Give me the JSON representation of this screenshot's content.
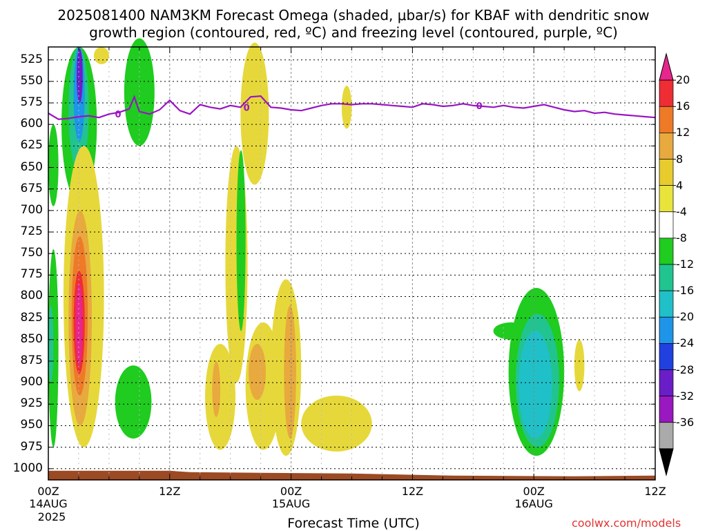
{
  "chart_data": {
    "type": "heatmap",
    "title_line1": "2025081400 NAM3KM Forecast Omega (shaded, μbar/s) for KBAF with dendritic snow",
    "title_line2": "growth region (contoured, red, ºC) and freezing level (contoured, purple, ºC)",
    "xlabel": "Forecast Time (UTC)",
    "ylabel": "",
    "y_ticks": [
      "525",
      "550",
      "575",
      "600",
      "625",
      "650",
      "675",
      "700",
      "725",
      "750",
      "775",
      "800",
      "825",
      "850",
      "875",
      "900",
      "925",
      "950",
      "975",
      "1000"
    ],
    "x_ticks": [
      {
        "label": "00Z",
        "sub": "14AUG"
      },
      {
        "label": "12Z",
        "sub": ""
      },
      {
        "label": "00Z",
        "sub": "15AUG"
      },
      {
        "label": "12Z",
        "sub": ""
      },
      {
        "label": "00Z",
        "sub": "16AUG"
      },
      {
        "label": "12Z",
        "sub": ""
      }
    ],
    "year_label": "2025",
    "xlim_hours": [
      0,
      60
    ],
    "ylim_hPa": [
      1013,
      510
    ],
    "grid": true,
    "colorbar": {
      "labels": [
        "20",
        "16",
        "12",
        "8",
        "4",
        "-4",
        "-8",
        "-12",
        "-16",
        "-20",
        "-24",
        "-28",
        "-32",
        "-36"
      ],
      "colors": [
        "#e8258c",
        "#ef2d35",
        "#ee7a28",
        "#e8a93e",
        "#e8cc2e",
        "#e9e43c",
        "#ffffff",
        "#1fcc1f",
        "#21c48f",
        "#20c0c8",
        "#1e95e8",
        "#2040e0",
        "#6a1ec8",
        "#9a18c0",
        "#aaaaaa",
        "#000000"
      ]
    },
    "freezing_level": {
      "label": "0",
      "hours": [
        0,
        1,
        2,
        3,
        4,
        5,
        6,
        7,
        8,
        8.5,
        9,
        10,
        11,
        12,
        13,
        14,
        15,
        16,
        17,
        18,
        19,
        20,
        21,
        22,
        23,
        24,
        25,
        26,
        27,
        28,
        29,
        30,
        31,
        32,
        33,
        34,
        35,
        36,
        37,
        38,
        39,
        40,
        41,
        42,
        43,
        44,
        45,
        46,
        47,
        48,
        49,
        50,
        51,
        52,
        53,
        54,
        55,
        56,
        57,
        58,
        59,
        60
      ],
      "level_hPa": [
        587,
        594,
        593,
        591,
        590,
        592,
        588,
        586,
        582,
        568,
        585,
        588,
        583,
        572,
        584,
        588,
        577,
        580,
        582,
        578,
        580,
        568,
        567,
        580,
        581,
        583,
        584,
        581,
        578,
        576,
        576,
        577,
        576,
        576,
        577,
        578,
        579,
        580,
        576,
        577,
        579,
        578,
        576,
        578,
        579,
        580,
        578,
        580,
        581,
        579,
        577,
        580,
        583,
        585,
        584,
        587,
        586,
        588,
        589,
        590,
        591,
        592
      ]
    },
    "omega_regions": [
      {
        "value": -8,
        "h0": 0.0,
        "h1": 1.0,
        "p0": 600,
        "p1": 695
      },
      {
        "value": -8,
        "h0": 0.0,
        "h1": 1.0,
        "p0": 745,
        "p1": 975
      },
      {
        "value": -12,
        "h0": 0.0,
        "h1": 0.5,
        "p0": 810,
        "p1": 900
      },
      {
        "value": -8,
        "h0": 1.3,
        "h1": 4.8,
        "p0": 510,
        "p1": 690
      },
      {
        "value": -12,
        "h0": 2.0,
        "h1": 4.0,
        "p0": 510,
        "p1": 655
      },
      {
        "value": -20,
        "h0": 2.5,
        "h1": 3.6,
        "p0": 510,
        "p1": 620
      },
      {
        "value": -28,
        "h0": 2.8,
        "h1": 3.4,
        "p0": 512,
        "p1": 575
      },
      {
        "value": 4,
        "h0": 4.5,
        "h1": 6.0,
        "p0": 510,
        "p1": 530
      },
      {
        "value": -8,
        "h0": 7.5,
        "h1": 10.5,
        "p0": 500,
        "p1": 625
      },
      {
        "value": 4,
        "h0": 1.5,
        "h1": 5.5,
        "p0": 625,
        "p1": 975
      },
      {
        "value": 8,
        "h0": 2.0,
        "h1": 4.3,
        "p0": 700,
        "p1": 950
      },
      {
        "value": 12,
        "h0": 2.3,
        "h1": 3.9,
        "p0": 730,
        "p1": 915
      },
      {
        "value": 16,
        "h0": 2.5,
        "h1": 3.6,
        "p0": 770,
        "p1": 890
      },
      {
        "value": 20,
        "h0": 2.7,
        "h1": 3.4,
        "p0": 785,
        "p1": 880
      },
      {
        "value": -8,
        "h0": 6.6,
        "h1": 10.2,
        "p0": 880,
        "p1": 965
      },
      {
        "value": 4,
        "h0": 15.5,
        "h1": 18.5,
        "p0": 855,
        "p1": 978
      },
      {
        "value": 8,
        "h0": 16.2,
        "h1": 17.0,
        "p0": 875,
        "p1": 940
      },
      {
        "value": 4,
        "h0": 17.5,
        "h1": 19.7,
        "p0": 625,
        "p1": 900
      },
      {
        "value": -8,
        "h0": 18.6,
        "h1": 19.5,
        "p0": 630,
        "p1": 840
      },
      {
        "value": 4,
        "h0": 19.5,
        "h1": 23.0,
        "p0": 830,
        "p1": 978
      },
      {
        "value": 8,
        "h0": 19.8,
        "h1": 21.5,
        "p0": 855,
        "p1": 920
      },
      {
        "value": 4,
        "h0": 19.0,
        "h1": 21.8,
        "p0": 505,
        "p1": 670
      },
      {
        "value": 4,
        "h0": 22.0,
        "h1": 25.0,
        "p0": 780,
        "p1": 985
      },
      {
        "value": 8,
        "h0": 23.3,
        "h1": 24.5,
        "p0": 810,
        "p1": 965
      },
      {
        "value": 4,
        "h0": 25.0,
        "h1": 32.0,
        "p0": 915,
        "p1": 980
      },
      {
        "value": 4,
        "h0": 29.0,
        "h1": 30.0,
        "p0": 555,
        "p1": 605
      },
      {
        "value": -8,
        "h0": 44.0,
        "h1": 47.5,
        "p0": 830,
        "p1": 850
      },
      {
        "value": -8,
        "h0": 45.5,
        "h1": 51.0,
        "p0": 790,
        "p1": 985
      },
      {
        "value": -12,
        "h0": 46.2,
        "h1": 50.5,
        "p0": 820,
        "p1": 975
      },
      {
        "value": -16,
        "h0": 46.5,
        "h1": 49.8,
        "p0": 840,
        "p1": 965
      },
      {
        "value": 4,
        "h0": 52.0,
        "h1": 53.0,
        "p0": 850,
        "p1": 910
      }
    ],
    "terrain_color": "#9c4a24"
  },
  "credit": "coolwx.com/models"
}
